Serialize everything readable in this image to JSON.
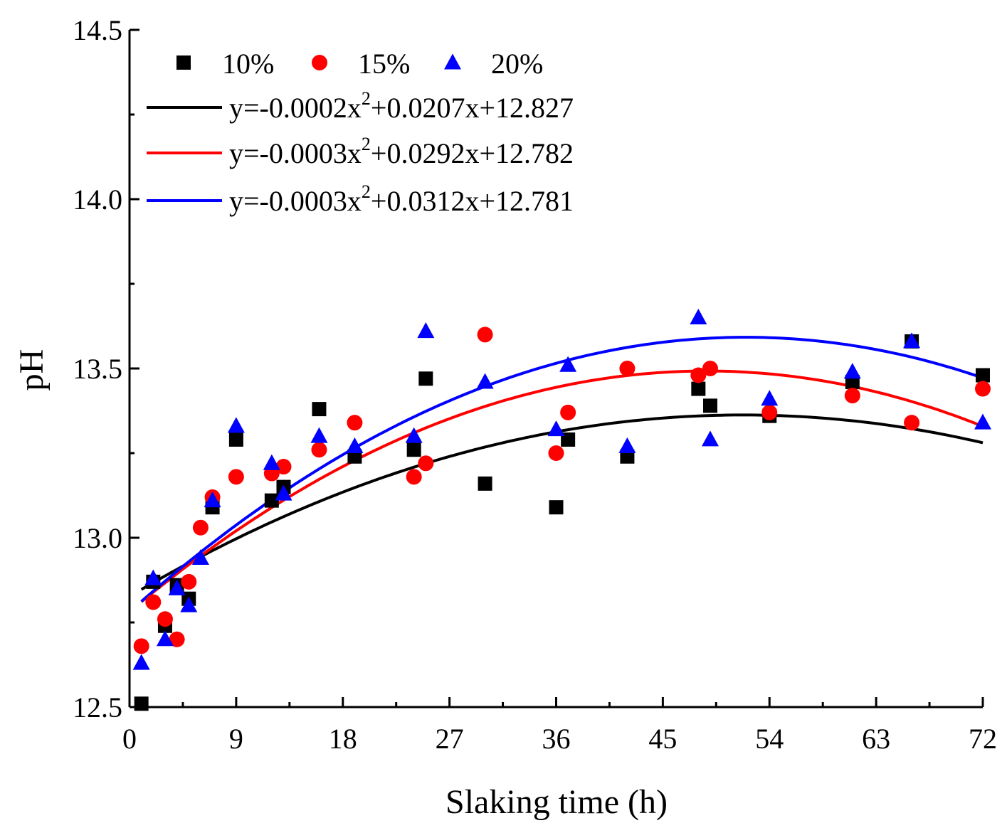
{
  "chart_data": {
    "type": "scatter",
    "title": "",
    "xlabel": "Slaking time (h)",
    "ylabel": "pH",
    "xlim": [
      0,
      72
    ],
    "ylim": [
      12.5,
      14.5
    ],
    "xticks": [
      0,
      9,
      18,
      27,
      36,
      45,
      54,
      63,
      72
    ],
    "xtick_labels": [
      "0",
      "9",
      "18",
      "27",
      "36",
      "45",
      "54",
      "63",
      "72"
    ],
    "yticks": [
      12.5,
      13.0,
      13.5,
      14.0,
      14.5
    ],
    "ytick_labels": [
      "12.5",
      "13.0",
      "13.5",
      "14.0",
      "14.5"
    ],
    "grid": false,
    "legend_position": "top-left",
    "series": [
      {
        "name": "10%",
        "marker": "square",
        "color": "#000000",
        "points": [
          [
            1,
            12.51
          ],
          [
            2,
            12.87
          ],
          [
            3,
            12.74
          ],
          [
            4,
            12.86
          ],
          [
            5,
            12.82
          ],
          [
            7,
            13.09
          ],
          [
            9,
            13.29
          ],
          [
            12,
            13.11
          ],
          [
            13,
            13.15
          ],
          [
            16,
            13.38
          ],
          [
            19,
            13.24
          ],
          [
            24,
            13.26
          ],
          [
            25,
            13.47
          ],
          [
            30,
            13.16
          ],
          [
            36,
            13.09
          ],
          [
            37,
            13.29
          ],
          [
            42,
            13.24
          ],
          [
            48,
            13.44
          ],
          [
            49,
            13.39
          ],
          [
            54,
            13.36
          ],
          [
            61,
            13.46
          ],
          [
            66,
            13.58
          ],
          [
            72,
            13.48
          ]
        ],
        "fit": {
          "label_pre": "y=-0.0002x",
          "label_sup": "2",
          "label_post": "+0.0207x+12.827",
          "a": -0.0002,
          "b": 0.0207,
          "c": 12.827,
          "color": "#000000"
        }
      },
      {
        "name": "15%",
        "marker": "circle",
        "color": "#ff0000",
        "points": [
          [
            1,
            12.68
          ],
          [
            2,
            12.81
          ],
          [
            3,
            12.76
          ],
          [
            4,
            12.7
          ],
          [
            5,
            12.87
          ],
          [
            6,
            13.03
          ],
          [
            7,
            13.12
          ],
          [
            9,
            13.18
          ],
          [
            12,
            13.19
          ],
          [
            13,
            13.21
          ],
          [
            16,
            13.26
          ],
          [
            19,
            13.34
          ],
          [
            24,
            13.18
          ],
          [
            25,
            13.22
          ],
          [
            30,
            13.6
          ],
          [
            36,
            13.25
          ],
          [
            37,
            13.37
          ],
          [
            42,
            13.5
          ],
          [
            48,
            13.48
          ],
          [
            49,
            13.5
          ],
          [
            54,
            13.37
          ],
          [
            61,
            13.42
          ],
          [
            66,
            13.34
          ],
          [
            72,
            13.44
          ]
        ],
        "fit": {
          "label_pre": "y=-0.0003x",
          "label_sup": "2",
          "label_post": "+0.0292x+12.782",
          "a": -0.0003,
          "b": 0.0292,
          "c": 12.782,
          "color": "#ff0000"
        }
      },
      {
        "name": "20%",
        "marker": "triangle",
        "color": "#0000ff",
        "points": [
          [
            1,
            12.63
          ],
          [
            2,
            12.88
          ],
          [
            3,
            12.7
          ],
          [
            4,
            12.85
          ],
          [
            5,
            12.8
          ],
          [
            6,
            12.94
          ],
          [
            7,
            13.11
          ],
          [
            9,
            13.33
          ],
          [
            12,
            13.22
          ],
          [
            13,
            13.13
          ],
          [
            16,
            13.3
          ],
          [
            19,
            13.27
          ],
          [
            24,
            13.3
          ],
          [
            25,
            13.61
          ],
          [
            30,
            13.46
          ],
          [
            36,
            13.32
          ],
          [
            37,
            13.51
          ],
          [
            42,
            13.27
          ],
          [
            48,
            13.65
          ],
          [
            49,
            13.29
          ],
          [
            54,
            13.41
          ],
          [
            61,
            13.49
          ],
          [
            66,
            13.58
          ],
          [
            72,
            13.34
          ]
        ],
        "fit": {
          "label_pre": "y=-0.0003x",
          "label_sup": "2",
          "label_post": "+0.0312x+12.781",
          "a": -0.0003,
          "b": 0.0312,
          "c": 12.781,
          "color": "#0000ff"
        }
      }
    ]
  }
}
